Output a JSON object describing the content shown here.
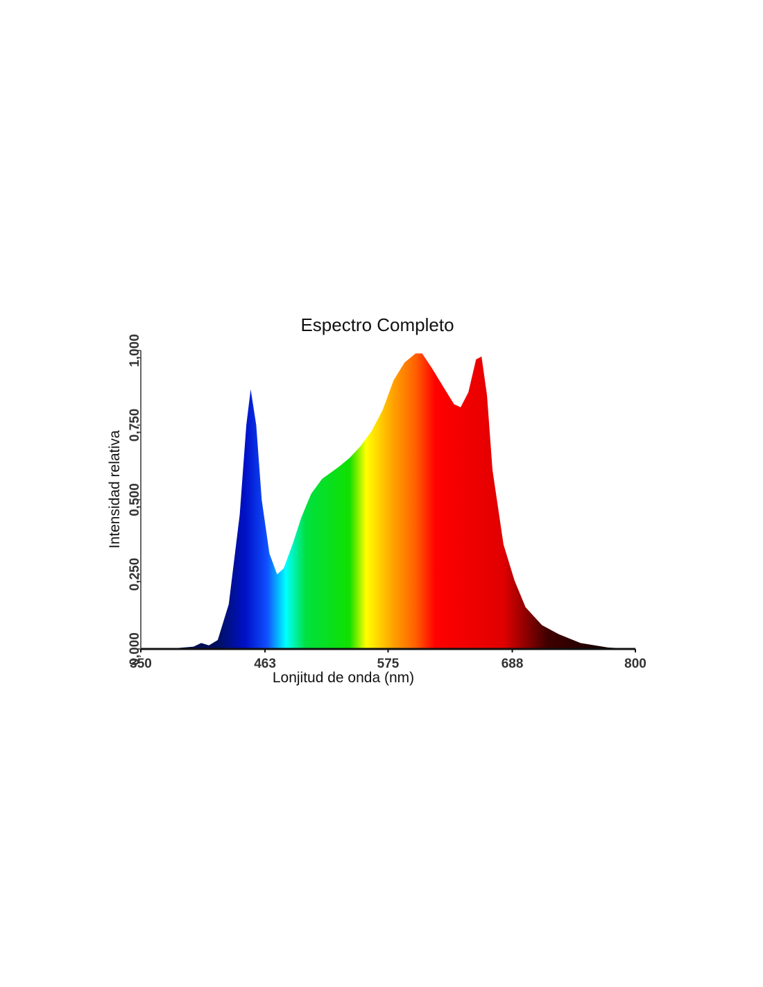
{
  "chart_data": {
    "type": "area",
    "title": "Espectro Completo",
    "x_label": "Lonjitud de onda (nm)",
    "y_label": "Intensidad relativa",
    "x": [
      350,
      380,
      398,
      405,
      412,
      420,
      430,
      440,
      446,
      450,
      455,
      460,
      467,
      474,
      480,
      488,
      496,
      505,
      515,
      530,
      540,
      550,
      560,
      570,
      580,
      590,
      600,
      606,
      615,
      625,
      635,
      641,
      648,
      655,
      660,
      665,
      670,
      680,
      690,
      700,
      715,
      730,
      750,
      775,
      800
    ],
    "y": [
      0,
      0.002,
      0.008,
      0.02,
      0.012,
      0.03,
      0.15,
      0.45,
      0.75,
      0.87,
      0.75,
      0.5,
      0.32,
      0.25,
      0.27,
      0.35,
      0.44,
      0.52,
      0.57,
      0.61,
      0.64,
      0.68,
      0.73,
      0.8,
      0.9,
      0.96,
      0.99,
      0.99,
      0.94,
      0.88,
      0.82,
      0.81,
      0.86,
      0.97,
      0.98,
      0.85,
      0.6,
      0.35,
      0.23,
      0.14,
      0.08,
      0.05,
      0.02,
      0.005,
      0
    ],
    "xlim": [
      350,
      800
    ],
    "ylim": [
      0,
      1
    ],
    "xticks": [
      350,
      463,
      575,
      688,
      800
    ],
    "yticks": [
      {
        "value": 0,
        "label": "0,000"
      },
      {
        "value": 0.25,
        "label": "0,250"
      },
      {
        "value": 0.5,
        "label": "0,500"
      },
      {
        "value": 0.75,
        "label": "0,750"
      },
      {
        "value": 1,
        "label": "1,000"
      }
    ],
    "color_stops": [
      {
        "x": 350,
        "color": "#0a0a2a"
      },
      {
        "x": 420,
        "color": "#001060"
      },
      {
        "x": 445,
        "color": "#0010c8"
      },
      {
        "x": 465,
        "color": "#1050ff"
      },
      {
        "x": 482,
        "color": "#00ffff"
      },
      {
        "x": 500,
        "color": "#00e040"
      },
      {
        "x": 540,
        "color": "#10e000"
      },
      {
        "x": 555,
        "color": "#ffff00"
      },
      {
        "x": 580,
        "color": "#ffa000"
      },
      {
        "x": 600,
        "color": "#ff6000"
      },
      {
        "x": 618,
        "color": "#ff0000"
      },
      {
        "x": 680,
        "color": "#e00000"
      },
      {
        "x": 720,
        "color": "#400000"
      },
      {
        "x": 800,
        "color": "#000000"
      }
    ]
  }
}
